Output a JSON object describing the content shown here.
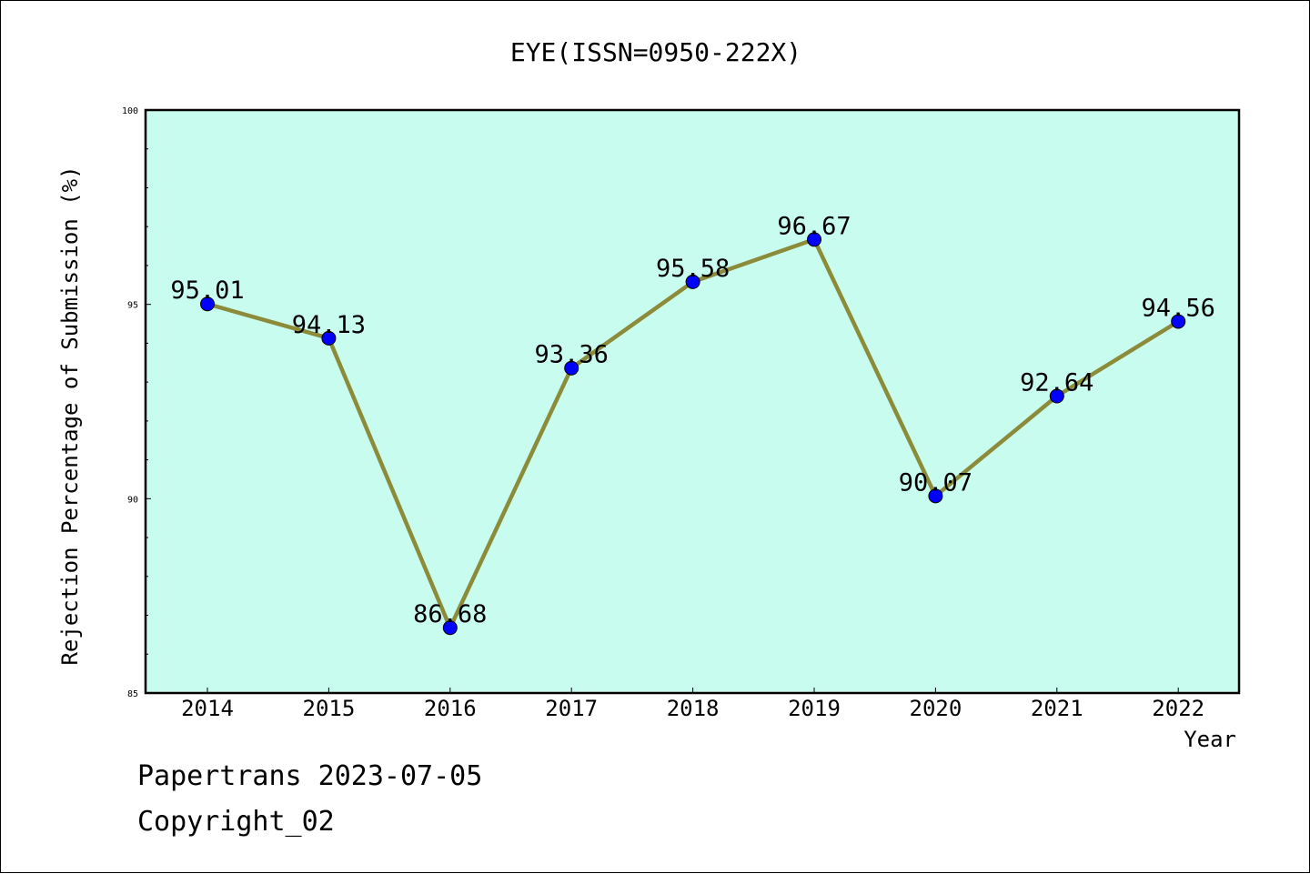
{
  "chart_data": {
    "type": "line",
    "title": "EYE(ISSN=0950-222X)",
    "xlabel": "Year",
    "ylabel": "Rejection Percentage of Submission (%)",
    "categories": [
      "2014",
      "2015",
      "2016",
      "2017",
      "2018",
      "2019",
      "2020",
      "2021",
      "2022"
    ],
    "values": [
      95.01,
      94.13,
      86.68,
      93.36,
      95.58,
      96.67,
      90.07,
      92.64,
      94.56
    ],
    "data_labels": [
      "95.01",
      "94.13",
      "86.68",
      "93.36",
      "95.58",
      "96.67",
      "90.07",
      "92.64",
      "94.56"
    ],
    "ylim": [
      85,
      100
    ],
    "yticks": [
      85,
      90,
      95,
      100
    ],
    "grid": false,
    "legend": "none",
    "colors": {
      "plot_background": "#c8fcee",
      "line": "#8b8b3a",
      "marker": "#0000ff"
    }
  },
  "footer": {
    "line1": "Papertrans 2023-07-05",
    "line2": "Copyright_02"
  }
}
